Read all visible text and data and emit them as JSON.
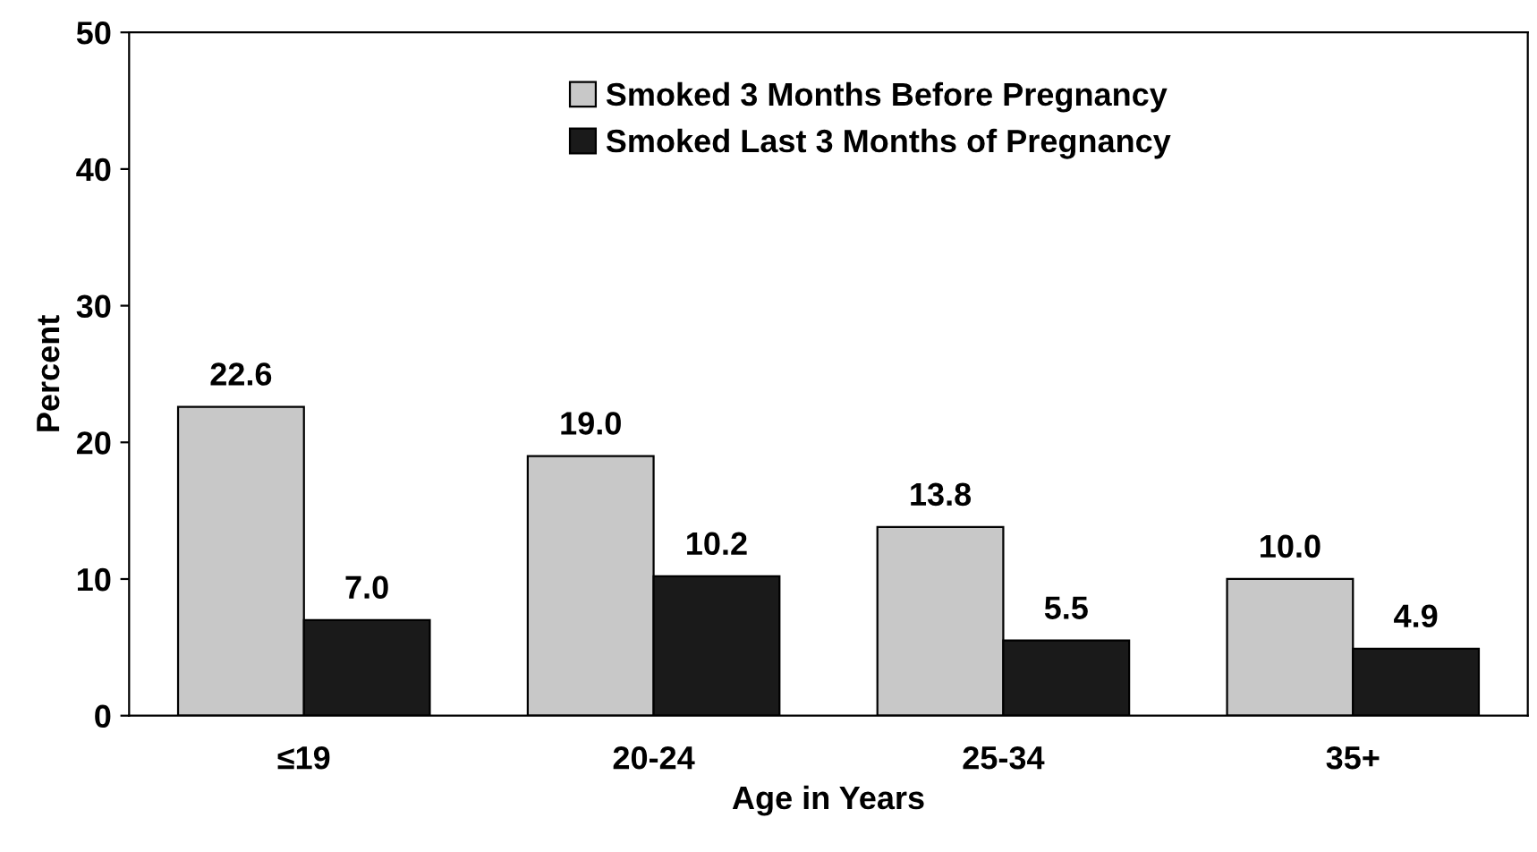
{
  "chart_data": {
    "type": "bar",
    "xlabel": "Age in Years",
    "ylabel": "Percent",
    "categories": [
      "≤19",
      "20-24",
      "25-34",
      "35+"
    ],
    "series": [
      {
        "name": "Smoked 3 Months Before Pregnancy",
        "color": "#c8c8c8",
        "values": [
          22.6,
          19.0,
          13.8,
          10.0
        ],
        "value_labels": [
          "22.6",
          "19.0",
          "13.8",
          "10.0"
        ]
      },
      {
        "name": "Smoked Last 3 Months of Pregnancy",
        "color": "#1a1a1a",
        "values": [
          7.0,
          10.2,
          5.5,
          4.9
        ],
        "value_labels": [
          "7.0",
          "10.2",
          "5.5",
          "4.9"
        ]
      }
    ],
    "ylim": [
      0,
      50
    ],
    "yticks": [
      0,
      10,
      20,
      30,
      40,
      50
    ],
    "legend": "top",
    "grid": false
  }
}
